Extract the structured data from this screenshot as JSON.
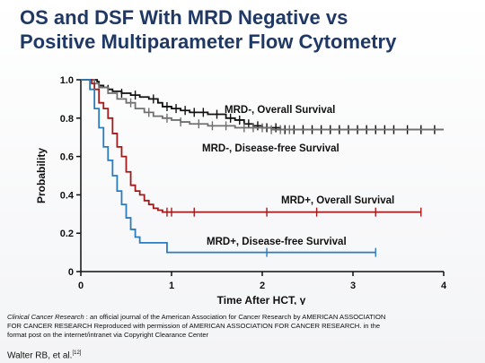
{
  "slide": {
    "title_line1": "OS and DSF With MRD Negative vs",
    "title_line2": "Positive Multiparameter Flow Cytometry",
    "citation_journal": "Clinical Cancer Research",
    "citation_text": " : an official journal of the American Association for Cancer Research by AMERICAN ASSOCIATION FOR CANCER RESEARCH Reproduced with permission of AMERICAN ASSOCIATION FOR CANCER RESEARCH. in the format post on the internet/intranet via Copyright Clearance Center",
    "authors": "Walter RB, et al.",
    "reference": "[12]"
  },
  "chart_data": {
    "type": "line",
    "step": true,
    "xlabel": "Time After HCT, y",
    "ylabel": "Probability",
    "xlim": [
      0,
      4
    ],
    "ylim": [
      0,
      1.0
    ],
    "xticks": [
      0,
      1,
      2,
      3,
      4
    ],
    "yticks": [
      "0",
      "0.2",
      "0.4",
      "0.6",
      "0.8",
      "1.0"
    ],
    "grid": false,
    "colors": {
      "mrd_neg_os": "#111111",
      "mrd_neg_dfs": "#707070",
      "mrd_pos_os": "#a31a1a",
      "mrd_pos_dfs": "#2b7bbf"
    },
    "series": [
      {
        "name": "MRD-, Overall Survival",
        "key": "mrd_neg_os",
        "points": [
          [
            0,
            1.0
          ],
          [
            0.18,
            0.99
          ],
          [
            0.2,
            0.97
          ],
          [
            0.25,
            0.96
          ],
          [
            0.3,
            0.95
          ],
          [
            0.35,
            0.94
          ],
          [
            0.45,
            0.93
          ],
          [
            0.55,
            0.92
          ],
          [
            0.65,
            0.91
          ],
          [
            0.75,
            0.9
          ],
          [
            0.85,
            0.88
          ],
          [
            0.9,
            0.86
          ],
          [
            1.0,
            0.85
          ],
          [
            1.1,
            0.84
          ],
          [
            1.2,
            0.83
          ],
          [
            1.4,
            0.82
          ],
          [
            1.6,
            0.8
          ],
          [
            1.7,
            0.79
          ],
          [
            1.8,
            0.77
          ],
          [
            1.9,
            0.76
          ],
          [
            2.0,
            0.75
          ],
          [
            2.2,
            0.74
          ],
          [
            2.7,
            0.74
          ],
          [
            4.0,
            0.74
          ]
        ],
        "censor_x": [
          0.3,
          0.45,
          0.6,
          0.8,
          0.95,
          1.05,
          1.15,
          1.25,
          1.35,
          1.5,
          1.65,
          1.75,
          1.85,
          1.95,
          2.05,
          2.15,
          2.25,
          2.35,
          2.45,
          2.55,
          2.65,
          2.75,
          2.85,
          2.95,
          3.05,
          3.15,
          3.25,
          3.35,
          3.45,
          3.6,
          3.75,
          3.9
        ]
      },
      {
        "name": "MRD-, Disease-free Survival",
        "key": "mrd_neg_dfs",
        "points": [
          [
            0,
            1.0
          ],
          [
            0.15,
            0.98
          ],
          [
            0.2,
            0.96
          ],
          [
            0.3,
            0.93
          ],
          [
            0.4,
            0.9
          ],
          [
            0.5,
            0.88
          ],
          [
            0.6,
            0.85
          ],
          [
            0.7,
            0.83
          ],
          [
            0.8,
            0.81
          ],
          [
            0.9,
            0.8
          ],
          [
            1.0,
            0.79
          ],
          [
            1.1,
            0.78
          ],
          [
            1.2,
            0.77
          ],
          [
            1.4,
            0.76
          ],
          [
            1.7,
            0.75
          ],
          [
            2.1,
            0.74
          ],
          [
            2.3,
            0.74
          ],
          [
            4.0,
            0.74
          ]
        ],
        "censor_x": [
          0.55,
          0.75,
          0.95,
          1.1,
          1.3,
          1.45,
          1.6,
          1.8,
          1.9,
          2.0,
          2.1,
          2.2,
          2.3
        ]
      },
      {
        "name": "MRD+, Overall Survival",
        "key": "mrd_pos_os",
        "points": [
          [
            0,
            1.0
          ],
          [
            0.12,
            0.98
          ],
          [
            0.15,
            0.95
          ],
          [
            0.2,
            0.88
          ],
          [
            0.25,
            0.85
          ],
          [
            0.3,
            0.8
          ],
          [
            0.35,
            0.72
          ],
          [
            0.4,
            0.65
          ],
          [
            0.45,
            0.6
          ],
          [
            0.5,
            0.52
          ],
          [
            0.55,
            0.45
          ],
          [
            0.6,
            0.42
          ],
          [
            0.65,
            0.4
          ],
          [
            0.7,
            0.37
          ],
          [
            0.75,
            0.35
          ],
          [
            0.8,
            0.33
          ],
          [
            0.85,
            0.32
          ],
          [
            0.9,
            0.31
          ],
          [
            3.75,
            0.31
          ]
        ],
        "censor_x": [
          0.95,
          1.0,
          1.25,
          2.05,
          2.6,
          3.25,
          3.75
        ]
      },
      {
        "name": "MRD+, Disease-free Survival",
        "key": "mrd_pos_dfs",
        "points": [
          [
            0,
            1.0
          ],
          [
            0.1,
            0.95
          ],
          [
            0.15,
            0.85
          ],
          [
            0.2,
            0.75
          ],
          [
            0.25,
            0.65
          ],
          [
            0.3,
            0.58
          ],
          [
            0.35,
            0.5
          ],
          [
            0.4,
            0.42
          ],
          [
            0.45,
            0.35
          ],
          [
            0.5,
            0.28
          ],
          [
            0.55,
            0.22
          ],
          [
            0.6,
            0.18
          ],
          [
            0.65,
            0.15
          ],
          [
            0.95,
            0.1
          ],
          [
            3.25,
            0.1
          ]
        ],
        "censor_x": [
          2.05,
          3.25
        ]
      }
    ],
    "labels": [
      "MRD-, Overall Survival",
      "MRD-, Disease-free Survival",
      "MRD+, Overall Survival",
      "MRD+, Disease-free Survival"
    ]
  }
}
